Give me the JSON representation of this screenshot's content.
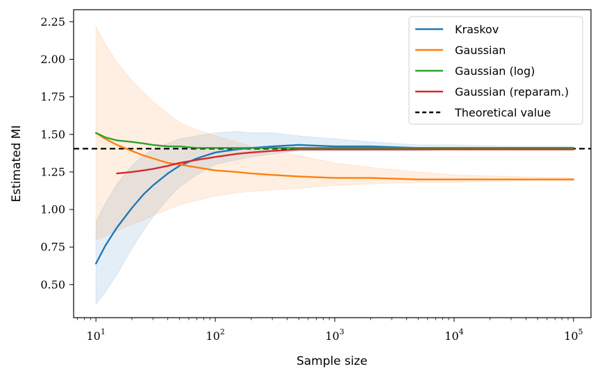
{
  "chart_data": {
    "type": "line",
    "title": "",
    "xlabel": "Sample size",
    "ylabel": "Estimated MI",
    "xscale": "log",
    "xlim": [
      6.5,
      140000
    ],
    "ylim": [
      0.28,
      2.33
    ],
    "xticks": [
      {
        "value": 10,
        "base": "10",
        "exp": "1"
      },
      {
        "value": 100,
        "base": "10",
        "exp": "2"
      },
      {
        "value": 1000,
        "base": "10",
        "exp": "3"
      },
      {
        "value": 10000,
        "base": "10",
        "exp": "4"
      },
      {
        "value": 100000,
        "base": "10",
        "exp": "5"
      }
    ],
    "yticks": [
      "0.50",
      "0.75",
      "1.00",
      "1.25",
      "1.50",
      "1.75",
      "2.00",
      "2.25"
    ],
    "legend_position": "top-right",
    "grid": false,
    "reference_line": {
      "name": "Theoretical value",
      "y": 1.405,
      "color": "#000000",
      "style": "dashed"
    },
    "series": [
      {
        "name": "Kraskov",
        "color": "#1f77b4",
        "x": [
          10,
          12,
          15,
          20,
          25,
          30,
          40,
          50,
          70,
          100,
          150,
          200,
          300,
          500,
          1000,
          2000,
          5000,
          10000,
          30000,
          100000
        ],
        "y": [
          0.64,
          0.76,
          0.88,
          1.01,
          1.1,
          1.16,
          1.24,
          1.29,
          1.34,
          1.38,
          1.4,
          1.41,
          1.42,
          1.43,
          1.42,
          1.42,
          1.41,
          1.41,
          1.41,
          1.41
        ],
        "band_low": [
          0.37,
          0.45,
          0.57,
          0.74,
          0.86,
          0.95,
          1.07,
          1.15,
          1.23,
          1.3,
          1.33,
          1.35,
          1.37,
          1.39,
          1.39,
          1.39,
          1.39,
          1.4,
          1.4,
          1.4
        ],
        "band_high": [
          0.92,
          1.04,
          1.17,
          1.29,
          1.36,
          1.4,
          1.44,
          1.47,
          1.49,
          1.51,
          1.52,
          1.51,
          1.51,
          1.49,
          1.47,
          1.45,
          1.43,
          1.43,
          1.42,
          1.42
        ]
      },
      {
        "name": "Gaussian",
        "color": "#ff7f0e",
        "x": [
          10,
          12,
          15,
          20,
          25,
          30,
          40,
          50,
          70,
          100,
          150,
          200,
          300,
          500,
          1000,
          2000,
          5000,
          10000,
          30000,
          100000
        ],
        "y": [
          1.51,
          1.47,
          1.43,
          1.39,
          1.36,
          1.34,
          1.31,
          1.3,
          1.28,
          1.26,
          1.25,
          1.24,
          1.23,
          1.22,
          1.21,
          1.21,
          1.2,
          1.2,
          1.2,
          1.2
        ],
        "band_low": [
          0.8,
          0.82,
          0.86,
          0.9,
          0.93,
          0.96,
          1.0,
          1.03,
          1.06,
          1.09,
          1.11,
          1.12,
          1.13,
          1.14,
          1.16,
          1.17,
          1.18,
          1.18,
          1.19,
          1.19
        ],
        "band_high": [
          2.22,
          2.1,
          1.98,
          1.86,
          1.78,
          1.72,
          1.64,
          1.58,
          1.53,
          1.49,
          1.45,
          1.42,
          1.39,
          1.36,
          1.31,
          1.28,
          1.25,
          1.23,
          1.22,
          1.21
        ]
      },
      {
        "name": "Gaussian (log)",
        "color": "#2ca02c",
        "x": [
          10,
          12,
          15,
          20,
          25,
          30,
          40,
          50,
          70,
          100,
          150,
          200,
          300,
          500,
          1000,
          2000,
          5000,
          10000,
          30000,
          100000
        ],
        "y": [
          1.51,
          1.48,
          1.46,
          1.45,
          1.44,
          1.43,
          1.42,
          1.42,
          1.41,
          1.41,
          1.41,
          1.41,
          1.41,
          1.41,
          1.41,
          1.41,
          1.41,
          1.41,
          1.41,
          1.41
        ]
      },
      {
        "name": "Gaussian (reparam.)",
        "color": "#d62728",
        "x": [
          15,
          20,
          25,
          30,
          40,
          50,
          70,
          100,
          150,
          200,
          300,
          500,
          1000,
          2000,
          5000,
          10000,
          30000,
          100000
        ],
        "y": [
          1.24,
          1.25,
          1.26,
          1.27,
          1.29,
          1.31,
          1.33,
          1.35,
          1.37,
          1.38,
          1.39,
          1.4,
          1.4,
          1.4,
          1.4,
          1.4,
          1.4,
          1.4
        ]
      }
    ]
  }
}
